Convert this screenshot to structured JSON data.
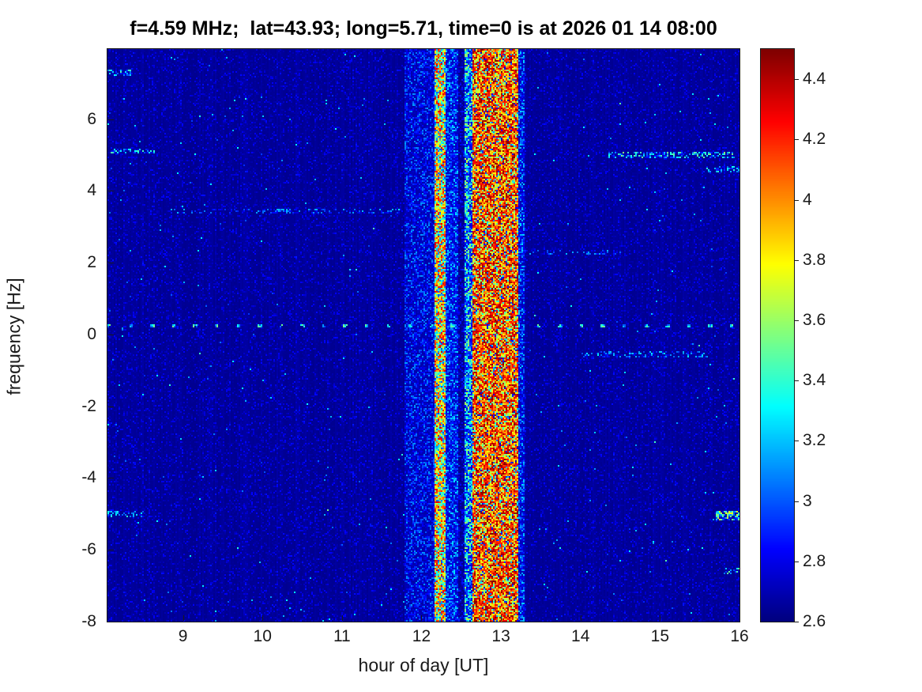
{
  "chart_data": {
    "type": "heatmap",
    "title": "f=4.59 MHz;  lat=43.93; long=5.71, time=0 is at 2026 01 14 08:00",
    "xlabel": "hour of day [UT]",
    "ylabel": "frequency [Hz]",
    "xlim": [
      8.05,
      16.0
    ],
    "ylim": [
      -8,
      7.95
    ],
    "clim": [
      2.6,
      4.5
    ],
    "colormap": "jet",
    "grid": false,
    "x_ticks": [
      "9",
      "10",
      "11",
      "12",
      "13",
      "14",
      "15",
      "16"
    ],
    "x_tick_values": [
      9,
      10,
      11,
      12,
      13,
      14,
      15,
      16
    ],
    "y_ticks": [
      "6",
      "4",
      "2",
      "0",
      "-2",
      "-4",
      "-6",
      "-8"
    ],
    "y_tick_values": [
      6,
      4,
      2,
      0,
      -2,
      -4,
      -6,
      -8
    ],
    "colorbar_ticks": [
      "4.4",
      "4.2",
      "4",
      "3.8",
      "3.6",
      "3.4",
      "3.2",
      "3",
      "2.8",
      "2.6"
    ],
    "colorbar_tick_values": [
      4.4,
      4.2,
      4.0,
      3.8,
      3.6,
      3.4,
      3.2,
      3.0,
      2.8,
      2.6
    ],
    "background_level": 2.65,
    "vertical_bands": [
      {
        "x0": 11.78,
        "x1": 12.17,
        "base": 2.68,
        "noise": 0.45,
        "pw": 2.6
      },
      {
        "x0": 12.17,
        "x1": 12.3,
        "base": 2.95,
        "noise": 1.4,
        "pw": 0.9
      },
      {
        "x0": 12.3,
        "x1": 12.46,
        "base": 2.72,
        "noise": 0.55,
        "pw": 2.2
      },
      {
        "x0": 12.46,
        "x1": 12.55,
        "base": 2.62,
        "noise": 0.3,
        "pw": 3.5
      },
      {
        "x0": 12.55,
        "x1": 12.64,
        "base": 2.75,
        "noise": 0.95,
        "pw": 1.6
      },
      {
        "x0": 12.64,
        "x1": 13.22,
        "base": 3.4,
        "noise": 1.1,
        "pw": 0.65,
        "dark": 0.1
      },
      {
        "x0": 13.22,
        "x1": 13.3,
        "base": 2.7,
        "noise": 0.55,
        "pw": 2.2
      }
    ],
    "horizontal_streaks": [
      {
        "x0": 8.08,
        "x1": 8.65,
        "y": 5.1,
        "amp": 0.75,
        "prob": 0.5,
        "half": 0.08
      },
      {
        "x0": 14.35,
        "x1": 15.95,
        "y": 5.0,
        "amp": 0.85,
        "prob": 0.45,
        "half": 0.09
      },
      {
        "x0": 15.55,
        "x1": 16.0,
        "y": 4.6,
        "amp": 0.7,
        "prob": 0.4,
        "half": 0.07
      },
      {
        "x0": 8.85,
        "x1": 11.95,
        "y": 3.45,
        "amp": 0.45,
        "prob": 0.22,
        "half": 0.07
      },
      {
        "x0": 13.3,
        "x1": 14.65,
        "y": 2.3,
        "amp": 0.45,
        "prob": 0.22,
        "half": 0.07
      },
      {
        "x0": 14.0,
        "x1": 15.6,
        "y": -0.55,
        "amp": 0.55,
        "prob": 0.3,
        "half": 0.08
      },
      {
        "x0": 8.05,
        "x1": 8.5,
        "y": -5.0,
        "amp": 0.65,
        "prob": 0.4,
        "half": 0.08
      },
      {
        "x0": 15.7,
        "x1": 16.0,
        "y": -5.05,
        "amp": 1.05,
        "prob": 0.85,
        "half": 0.12
      },
      {
        "x0": 15.8,
        "x1": 16.0,
        "y": -6.6,
        "amp": 0.8,
        "prob": 0.5,
        "half": 0.08
      },
      {
        "x0": 8.05,
        "x1": 8.35,
        "y": 7.3,
        "amp": 0.7,
        "prob": 0.45,
        "half": 0.08
      }
    ],
    "dashed_line": {
      "y": 0.25,
      "period": 0.27,
      "duty": 0.18,
      "half": 0.05,
      "level_min": 2.95,
      "level_max": 3.55
    }
  }
}
